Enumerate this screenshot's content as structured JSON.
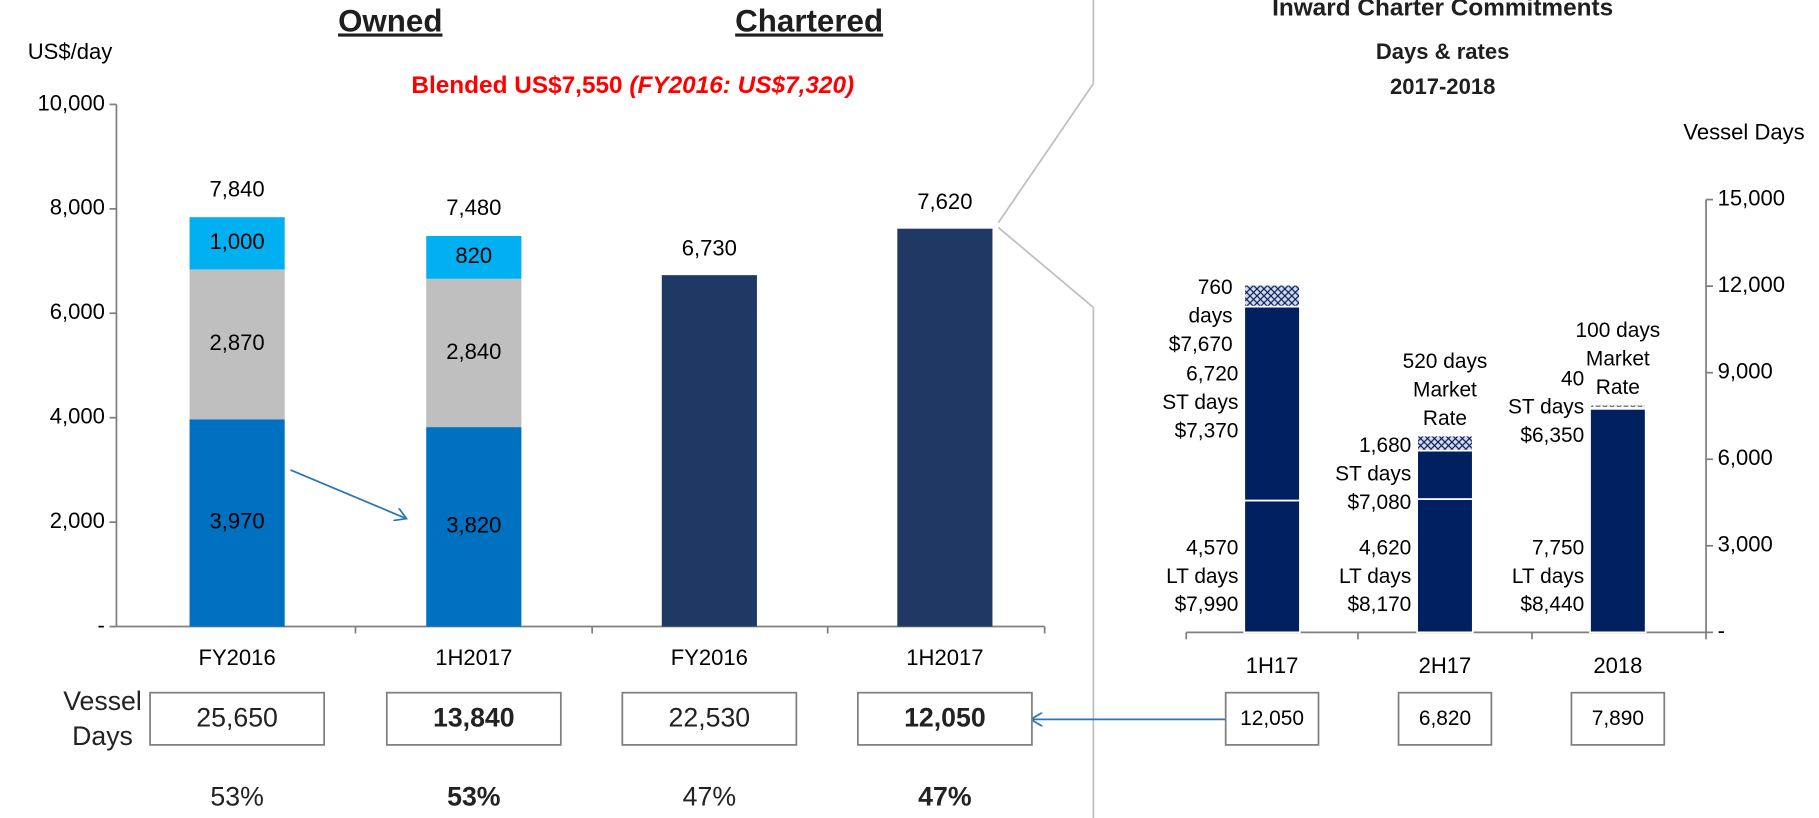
{
  "chart_data": [
    {
      "type": "bar",
      "stacked": true,
      "headers": [
        "Owned",
        "Chartered"
      ],
      "subtitle": "Blended US$7,550 ",
      "subtitle_note": "(FY2016: US$7,320)",
      "y_label": "US$/day",
      "categories": [
        "FY2016",
        "1H2017",
        "FY2016",
        "1H2017"
      ],
      "series": [
        {
          "color": "#0070c0",
          "label_color": "#ffffff",
          "values": [
            3970,
            3820,
            null,
            null
          ],
          "value_labels": [
            "3,970",
            "3,820",
            null,
            null
          ]
        },
        {
          "color": "#bfbfbf",
          "label_color": "#000000",
          "values": [
            2870,
            2840,
            null,
            null
          ],
          "value_labels": [
            "2,870",
            "2,840",
            null,
            null
          ]
        },
        {
          "color": "#00b0f0",
          "label_color": "#000000",
          "values": [
            1000,
            820,
            null,
            null
          ],
          "value_labels": [
            "1,000",
            "820",
            null,
            null
          ]
        },
        {
          "color": "#1f3864",
          "label_color": "#000000",
          "label_position": "top",
          "values": [
            null,
            null,
            6730,
            7620
          ],
          "value_labels": [
            null,
            null,
            "6,730",
            "7,620"
          ]
        }
      ],
      "totals": [
        7840,
        7480,
        null,
        null
      ],
      "total_labels": [
        "7,840",
        "7,480",
        null,
        null
      ],
      "ylim": [
        0,
        10000
      ],
      "yticks": [
        {
          "value": 0,
          "label": "-"
        },
        {
          "value": 2000,
          "label": "2,000"
        },
        {
          "value": 4000,
          "label": "4,000"
        },
        {
          "value": 6000,
          "label": "6,000"
        },
        {
          "value": 8000,
          "label": "8,000"
        },
        {
          "value": 10000,
          "label": "10,000"
        }
      ],
      "table": {
        "label": [
          "Vessel",
          "Days"
        ],
        "values": [
          25650,
          13840,
          22530,
          12050
        ],
        "value_labels": [
          "25,650",
          "13,840",
          "22,530",
          "12,050"
        ],
        "shares": [
          53,
          53,
          47,
          47
        ],
        "share_labels": [
          "53%",
          "53%",
          "47%",
          "47%"
        ],
        "emphasis": [
          false,
          true,
          false,
          true
        ]
      }
    },
    {
      "type": "bar",
      "stacked": true,
      "title": "Inward Charter Commitments",
      "subtitle": [
        "Days & rates",
        "2017-2018"
      ],
      "y2_label": "Vessel Days",
      "categories": [
        "1H17",
        "2H17",
        "2018"
      ],
      "series": [
        {
          "axis": "y2",
          "color": "#002060",
          "label_color": "#002060",
          "label_position": "bottom-left",
          "values": [
            4570,
            4620,
            7750
          ],
          "value_labels": [
            [
              "4,570",
              "LT days",
              "$7,990"
            ],
            [
              "4,620",
              "LT days",
              "$8,170"
            ],
            [
              "7,750",
              "LT days",
              "$8,440"
            ]
          ]
        },
        {
          "axis": "y2",
          "color": "#002060",
          "label_color": "#002060",
          "label_position": "left",
          "values": [
            6720,
            1680,
            40
          ],
          "value_labels": [
            [
              "6,720",
              "ST days",
              "$7,370"
            ],
            [
              "1,680",
              "ST days",
              "$7,080"
            ],
            [
              "40",
              "ST days",
              "$6,350"
            ]
          ]
        },
        {
          "axis": "y2",
          "color": "#002060",
          "pattern": "crosshatch",
          "label_color": "#2e75b6",
          "label_position": "top",
          "values": [
            760,
            520,
            100
          ],
          "value_labels": [
            [
              "760",
              "days",
              "$7,670"
            ],
            [
              "520 days",
              "Market",
              "Rate"
            ],
            [
              "100 days",
              "Market",
              "Rate"
            ]
          ]
        }
      ],
      "y2lim": [
        0,
        15000
      ],
      "y2ticks": [
        {
          "value": 0,
          "label": "-"
        },
        {
          "value": 3000,
          "label": "3,000"
        },
        {
          "value": 6000,
          "label": "6,000"
        },
        {
          "value": 9000,
          "label": "9,000"
        },
        {
          "value": 12000,
          "label": "12,000"
        },
        {
          "value": 15000,
          "label": "15,000"
        }
      ],
      "table": {
        "values": [
          12050,
          6820,
          7890
        ],
        "value_labels": [
          "12,050",
          "6,820",
          "7,890"
        ]
      }
    }
  ]
}
